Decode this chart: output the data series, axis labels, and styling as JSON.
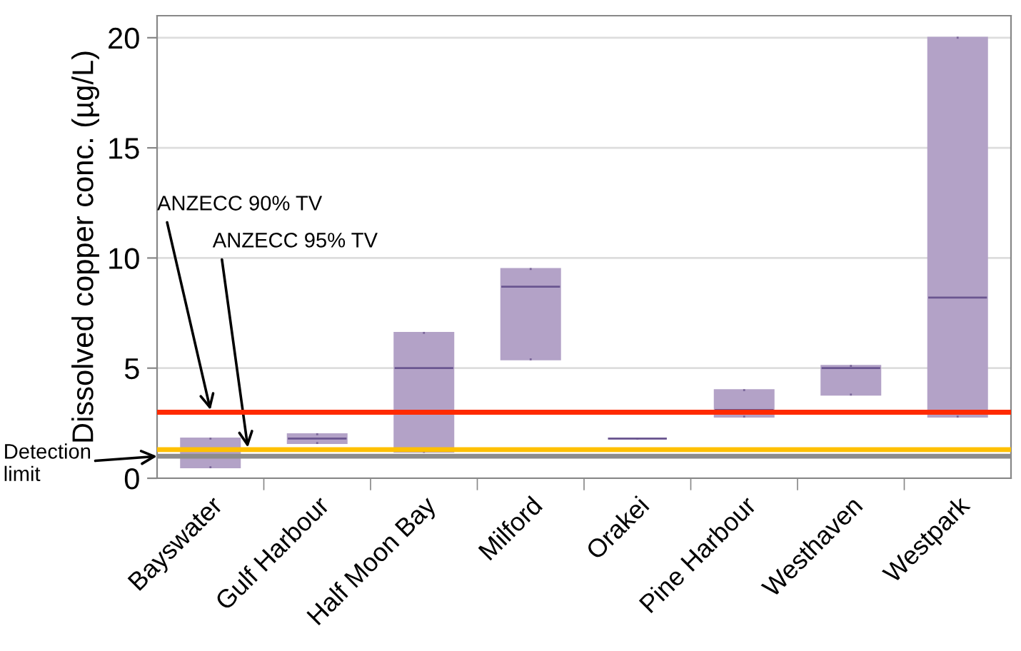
{
  "chart_data": {
    "type": "box",
    "ylabel": "Dissolved copper conc. (µg/L)",
    "categories": [
      "Bayswater",
      "Gulf Harbour",
      "Half Moon Bay",
      "Milford",
      "Orakei",
      "Pine Harbour",
      "Westhaven",
      "Westpark"
    ],
    "boxes": [
      {
        "low": 0.5,
        "q1": 0.5,
        "median": 1.0,
        "q3": 1.8,
        "high": 1.8
      },
      {
        "low": 1.6,
        "q1": 1.6,
        "median": 1.8,
        "q3": 2.0,
        "high": 2.0
      },
      {
        "low": 1.2,
        "q1": 1.2,
        "median": 5.0,
        "q3": 6.6,
        "high": 6.6
      },
      {
        "low": 5.4,
        "q1": 5.4,
        "median": 8.7,
        "q3": 9.5,
        "high": 9.5
      },
      {
        "low": 1.8,
        "q1": 1.8,
        "median": 1.8,
        "q3": 1.8,
        "high": 1.8
      },
      {
        "low": 2.8,
        "q1": 2.8,
        "median": 3.1,
        "q3": 4.0,
        "high": 4.0
      },
      {
        "low": 3.8,
        "q1": 3.8,
        "median": 5.0,
        "q3": 5.1,
        "high": 5.1
      },
      {
        "low": 2.8,
        "q1": 2.8,
        "median": 8.2,
        "q3": 20,
        "high": 20
      }
    ],
    "color": "#b3a2c7",
    "ylim": [
      0,
      21
    ],
    "yticks": [
      0,
      5,
      10,
      15,
      20
    ],
    "grid": "y",
    "ref_lines": [
      {
        "axis": "y",
        "value": 3,
        "label": "ANZECC 90% TV",
        "color": "#ff2a00"
      },
      {
        "axis": "y",
        "value": 1.3,
        "label": "ANZECC 95% TV",
        "color": "#ffc000"
      },
      {
        "axis": "y",
        "value": 1.0,
        "label": "Detection limit",
        "color": "#8c8c8c"
      }
    ]
  }
}
